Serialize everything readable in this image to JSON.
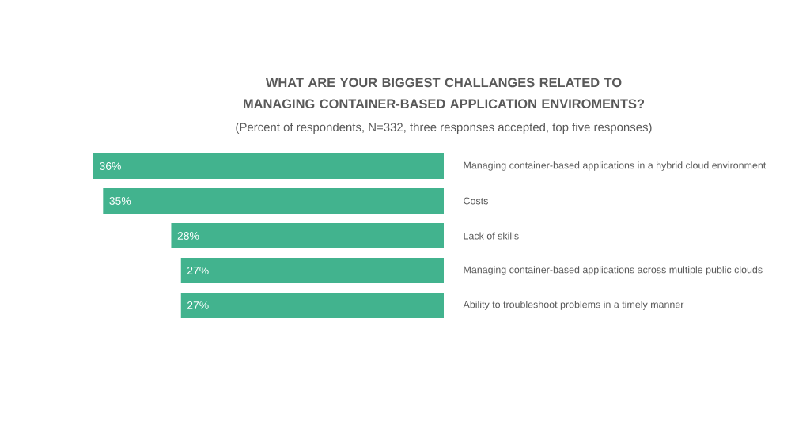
{
  "chart_data": {
    "type": "bar",
    "orientation": "horizontal",
    "title": "WHAT ARE YOUR BIGGEST CHALLANGES RELATED TO MANAGING CONTAINER-BASED APPLICATION ENVIROMENTS?",
    "subtitle": "(Percent of respondents, N=332, three responses accepted, top five responses)",
    "categories": [
      "Managing container-based applications in a hybrid cloud environment",
      "Costs",
      "Lack of skills",
      "Managing container-based applications across multiple public clouds",
      "Ability to troubleshoot problems in a timely manner"
    ],
    "values": [
      36,
      35,
      28,
      27,
      27
    ],
    "value_labels": [
      "36%",
      "35%",
      "28%",
      "27%",
      "27%"
    ],
    "color": "#42b38e"
  }
}
